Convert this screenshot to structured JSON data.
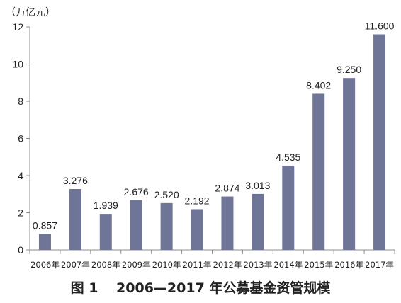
{
  "caption": "图 1　 2006—2017 年公募基金资管规模",
  "chart_data": {
    "type": "bar",
    "ylabel": "（万亿元）",
    "ylim": [
      0,
      12
    ],
    "yticks": [
      0,
      2,
      4,
      6,
      8,
      10,
      12
    ],
    "categories": [
      "2006年",
      "2007年",
      "2008年",
      "2009年",
      "2010年",
      "2011年",
      "2012年",
      "2013年",
      "2014年",
      "2015年",
      "2016年",
      "2017年"
    ],
    "values": [
      0.857,
      3.276,
      1.939,
      2.676,
      2.52,
      2.192,
      2.874,
      3.013,
      4.535,
      8.402,
      9.25,
      11.6
    ],
    "value_labels": [
      "0.857",
      "3.276",
      "1.939",
      "2.676",
      "2.520",
      "2.192",
      "2.874",
      "3.013",
      "4.535",
      "8.402",
      "9.250",
      "11.600"
    ],
    "bar_color": "#6f7597",
    "grid": false,
    "legend": "none"
  }
}
